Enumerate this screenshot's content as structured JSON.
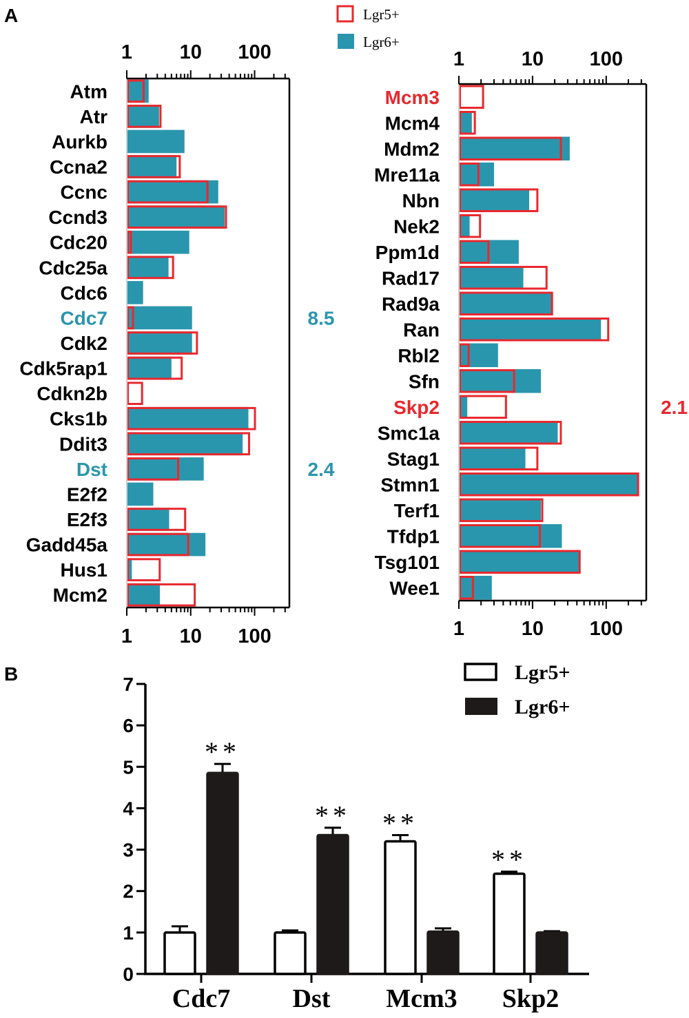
{
  "panel_labels": [
    "A",
    "B"
  ],
  "colors": {
    "lgr5": "#e8282d",
    "lgr6": "#2a96ad",
    "bar_dark": "#1e1a19",
    "axis": "#000000"
  },
  "chart_data": [
    {
      "id": "A-left",
      "type": "bar",
      "orientation": "horizontal",
      "xscale": "log",
      "xlim": [
        1,
        350
      ],
      "tick_labels": [
        "1",
        "10",
        "100"
      ],
      "tick_values": [
        1,
        10,
        100
      ],
      "legend": [
        "Lgr5+",
        "Lgr6+"
      ],
      "categories": [
        "Atm",
        "Atr",
        "Aurkb",
        "Ccna2",
        "Ccnc",
        "Ccnd3",
        "Cdc20",
        "Cdc25a",
        "Cdc6",
        "Cdc7",
        "Cdk2",
        "Cdk5rap1",
        "Cdkn2b",
        "Cks1b",
        "Ddit3",
        "Dst",
        "E2f2",
        "E2f3",
        "Gadd45a",
        "Hus1",
        "Mcm2"
      ],
      "highlight": {
        "Cdc7": "lgr6",
        "Dst": "lgr6"
      },
      "annotations": [
        {
          "category": "Cdc7",
          "text": "8.5"
        },
        {
          "category": "Dst",
          "text": "2.4"
        }
      ],
      "series": [
        {
          "name": "Lgr5+",
          "values": [
            1.9,
            3.5,
            1.0,
            7.0,
            19,
            37,
            1.2,
            5.5,
            1.0,
            1.3,
            13,
            7.5,
            1.8,
            105,
            85,
            6.6,
            1.0,
            8.5,
            9.5,
            3.4,
            12
          ]
        },
        {
          "name": "Lgr6+",
          "values": [
            2.2,
            3.2,
            8.0,
            6.0,
            27,
            34,
            9.5,
            4.5,
            1.8,
            10.5,
            10.5,
            5.0,
            1.0,
            80,
            65,
            16,
            2.6,
            4.6,
            17,
            1.2,
            3.3
          ]
        }
      ]
    },
    {
      "id": "A-right",
      "type": "bar",
      "orientation": "horizontal",
      "xscale": "log",
      "xlim": [
        1,
        350
      ],
      "tick_labels": [
        "1",
        "10",
        "100"
      ],
      "tick_values": [
        1,
        10,
        100
      ],
      "categories": [
        "Mcm3",
        "Mcm4",
        "Mdm2",
        "Mre11a",
        "Nbn",
        "Nek2",
        "Ppm1d",
        "Rad17",
        "Rad9a",
        "Ran",
        "Rbl2",
        "Sfn",
        "Skp2",
        "Smc1a",
        "Stag1",
        "Stmn1",
        "Terf1",
        "Tfdp1",
        "Tsg101",
        "Wee1"
      ],
      "highlight": {
        "Mcm3": "lgr5",
        "Skp2": "lgr5"
      },
      "annotations": [
        {
          "category": "Skp2",
          "text": "2.1"
        }
      ],
      "series": [
        {
          "name": "Lgr5+",
          "values": [
            2.2,
            1.7,
            25,
            1.9,
            12,
            2.0,
            2.6,
            16,
            19,
            110,
            1.4,
            5.8,
            4.5,
            25,
            12,
            280,
            14,
            13,
            45,
            1.6
          ]
        },
        {
          "name": "Lgr6+",
          "values": [
            1.0,
            1.5,
            32,
            3.0,
            9.0,
            1.4,
            6.5,
            7.5,
            18,
            85,
            3.4,
            13,
            1.3,
            22,
            8.0,
            275,
            13,
            25,
            44,
            2.8
          ]
        }
      ]
    },
    {
      "id": "B",
      "type": "bar",
      "orientation": "vertical",
      "categories": [
        "Cdc7",
        "Dst",
        "Mcm3",
        "Skp2"
      ],
      "ylim": [
        0,
        7
      ],
      "yticks": [
        "0",
        "1",
        "2",
        "3",
        "4",
        "5",
        "6",
        "7"
      ],
      "legend": [
        "Lgr5+",
        "Lgr6+"
      ],
      "significance": [
        "**",
        "**",
        "**",
        "**"
      ],
      "series": [
        {
          "name": "Lgr5+",
          "values": [
            1.0,
            1.0,
            3.2,
            2.42
          ],
          "errors": [
            0.15,
            0.05,
            0.15,
            0.05
          ]
        },
        {
          "name": "Lgr6+",
          "values": [
            4.85,
            3.35,
            1.02,
            1.0
          ],
          "errors": [
            0.22,
            0.18,
            0.08,
            0.03
          ]
        }
      ]
    }
  ]
}
